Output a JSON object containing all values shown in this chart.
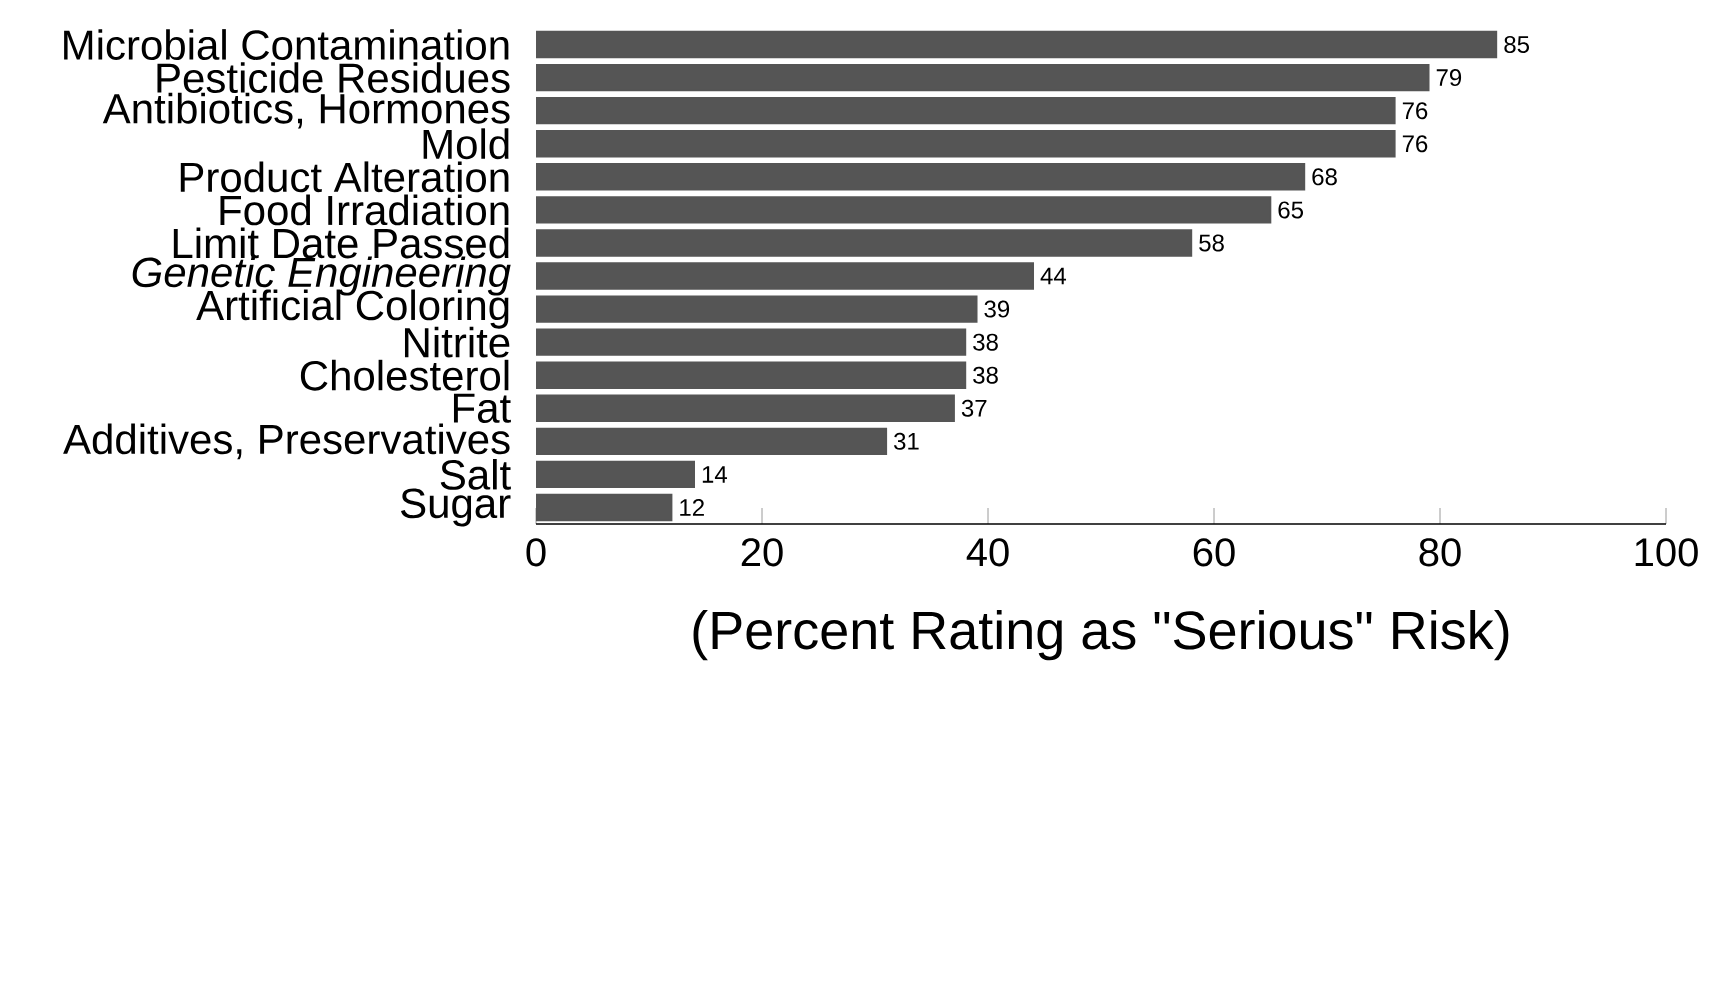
{
  "chart_data": {
    "type": "bar",
    "orientation": "horizontal",
    "xlabel": "(Percent Rating as \"Serious\" Risk)",
    "categories": [
      "Microbial Contamination",
      "Pesticide Residues",
      "Antibiotics, Hormones",
      "Mold",
      "Product Alteration",
      "Food Irradiation",
      "Limit Date Passed",
      "*Genetic Engineering*",
      "Artificial Coloring",
      "Nitrite",
      "Cholesterol",
      "Fat",
      "Additives, Preservatives",
      "Salt",
      "Sugar"
    ],
    "values": [
      85,
      79,
      76,
      76,
      68,
      65,
      58,
      44,
      39,
      38,
      38,
      37,
      31,
      14,
      12
    ],
    "color": "#555555",
    "xlim": [
      0,
      100
    ],
    "xticks": [
      0,
      20,
      40,
      60,
      80,
      100
    ],
    "data_labels": true,
    "grid": false
  }
}
